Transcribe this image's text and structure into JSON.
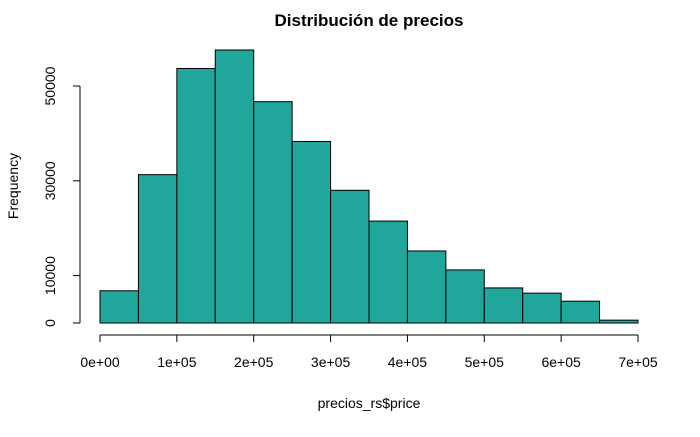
{
  "chart_data": {
    "type": "bar",
    "title": "Distribución de precios",
    "xlabel": "precios_rs$price",
    "ylabel": "Frequency",
    "bin_edges": [
      0,
      50000,
      100000,
      150000,
      200000,
      250000,
      300000,
      350000,
      400000,
      450000,
      500000,
      550000,
      600000,
      650000,
      700000
    ],
    "values": [
      6800,
      31300,
      53700,
      57600,
      46700,
      38300,
      28000,
      21500,
      15200,
      11200,
      7400,
      6300,
      4600,
      600
    ],
    "xlim": [
      0,
      700000
    ],
    "ylim": [
      0,
      57600
    ],
    "x_ticks": [
      0,
      100000,
      200000,
      300000,
      400000,
      500000,
      600000,
      700000
    ],
    "x_tick_labels": [
      "0e+00",
      "1e+05",
      "2e+05",
      "3e+05",
      "4e+05",
      "5e+05",
      "6e+05",
      "7e+05"
    ],
    "y_ticks": [
      0,
      10000,
      30000,
      50000
    ],
    "y_tick_labels": [
      "0",
      "10000",
      "30000",
      "50000"
    ],
    "bar_color": "#20a69a",
    "bar_border_color": "#000000",
    "grid": false,
    "legend": "none"
  }
}
